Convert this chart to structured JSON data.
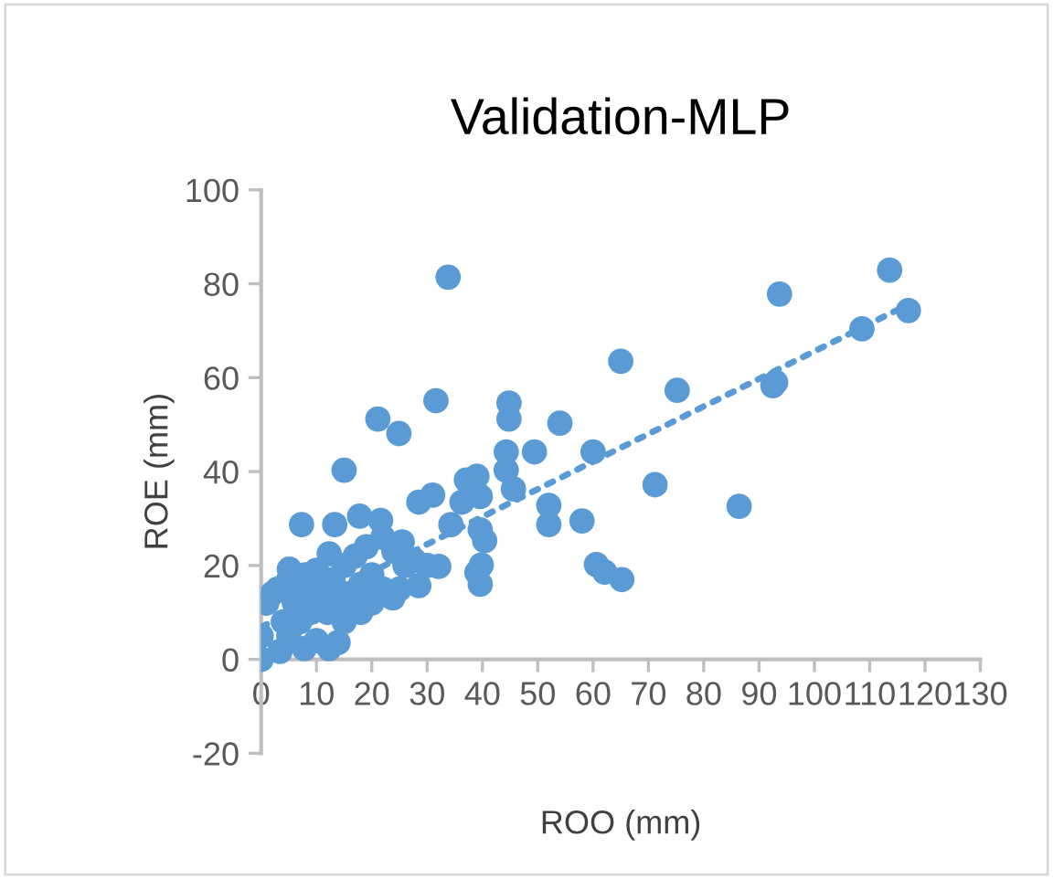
{
  "chart_data": {
    "type": "scatter",
    "title": "Validation-MLP",
    "xlabel": "ROO (mm)",
    "ylabel": "ROE (mm)",
    "xlim": [
      0,
      130
    ],
    "xticks": [
      0,
      10,
      20,
      30,
      40,
      50,
      60,
      70,
      80,
      90,
      100,
      110,
      120,
      130
    ],
    "ylim": [
      -20,
      100
    ],
    "yticks": [
      -20,
      0,
      20,
      40,
      60,
      80,
      100
    ],
    "grid": false,
    "legend": false,
    "marker": "circle",
    "series": [
      {
        "color": "#5b9bd5",
        "x": [
          33.8,
          113.6,
          93.7,
          117,
          108.6,
          93,
          92.5,
          65,
          75.2,
          54,
          60,
          71.2,
          86.4,
          52,
          52,
          58,
          60.6,
          62.1,
          65.2,
          31.6,
          21.1,
          24.9,
          44.8,
          44.8,
          49.4,
          44.3,
          44.3,
          45.6,
          15,
          7.3,
          28.5,
          31,
          37.1,
          39,
          39.6,
          36.3,
          34.3,
          39.6,
          40.4,
          39.8,
          39,
          39.6,
          32.1,
          28.5,
          23.8,
          17.8,
          13.3,
          21.6,
          12.3,
          25.5,
          27.7,
          5.1,
          0,
          3.4,
          0,
          1,
          2,
          3,
          5,
          8,
          10,
          5,
          7,
          10,
          7.8,
          13.9,
          12.3,
          12,
          14,
          16,
          18,
          20,
          15,
          17,
          19,
          22,
          24,
          26,
          22,
          20,
          18,
          15,
          9,
          6,
          4,
          11,
          13,
          8,
          25,
          30
        ],
        "values": [
          81.4,
          82.9,
          77.8,
          74.3,
          70.4,
          59,
          58.3,
          63.5,
          57.3,
          50.3,
          44.2,
          37.2,
          32.6,
          32.8,
          28.7,
          29.5,
          20.2,
          18.6,
          17,
          55.1,
          51.2,
          48.1,
          54.6,
          51.2,
          44.2,
          44.2,
          40.3,
          36.3,
          40.3,
          28.7,
          33.5,
          35,
          38.2,
          39,
          34.7,
          33.5,
          28.7,
          27.6,
          25.3,
          20.1,
          18.5,
          16,
          19.8,
          15.7,
          13.1,
          30.5,
          28.7,
          29.6,
          22.5,
          25,
          21.1,
          19.2,
          0,
          1.7,
          5,
          12,
          14,
          15,
          17,
          18,
          19,
          5,
          8,
          4,
          2.3,
          3.6,
          2.3,
          10,
          12,
          14,
          16,
          18,
          20,
          22,
          24,
          26,
          23,
          20,
          15,
          12,
          10,
          8,
          10,
          12,
          8,
          14,
          17,
          14,
          15,
          20
        ]
      },
      {
        "type": "line",
        "color": "#5b9bd5",
        "line_style": "dotted",
        "marker": "none",
        "x": [
          0,
          117
        ],
        "values": [
          6.9,
          75.6
        ]
      }
    ]
  }
}
